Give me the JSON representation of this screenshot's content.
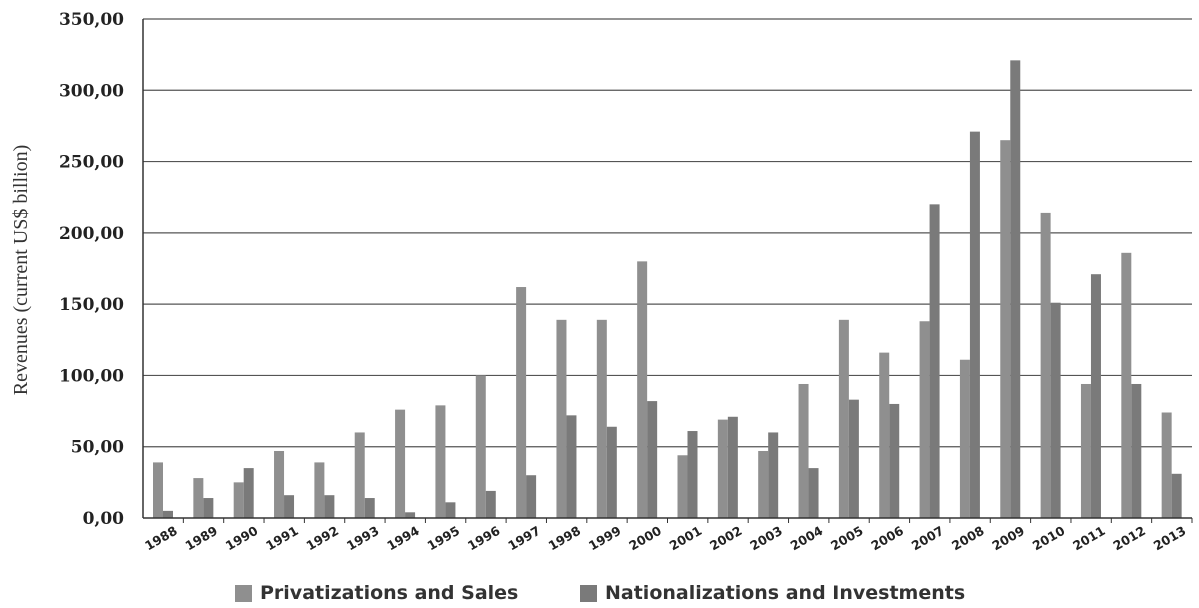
{
  "chart_data": {
    "type": "bar",
    "title": "",
    "xlabel": "",
    "ylabel": "Revenues (current US$ billion)",
    "ylim": [
      0,
      350
    ],
    "yticks": [
      "0,00",
      "50,00",
      "100,00",
      "150,00",
      "200,00",
      "250,00",
      "300,00",
      "350,00"
    ],
    "categories": [
      "1988",
      "1989",
      "1990",
      "1991",
      "1992",
      "1993",
      "1994",
      "1995",
      "1996",
      "1997",
      "1998",
      "1999",
      "2000",
      "2001",
      "2002",
      "2003",
      "2004",
      "2005",
      "2006",
      "2007",
      "2008",
      "2009",
      "2010",
      "2011",
      "2012",
      "2013"
    ],
    "series": [
      {
        "name": "Privatizations and Sales",
        "color": "#8f8f8f",
        "values": [
          39,
          28,
          25,
          47,
          39,
          60,
          76,
          79,
          100,
          162,
          139,
          139,
          180,
          44,
          69,
          47,
          94,
          139,
          116,
          138,
          111,
          265,
          214,
          94,
          186,
          74
        ]
      },
      {
        "name": "Nationalizations and Investments",
        "color": "#7a7a7a",
        "values": [
          5,
          14,
          35,
          16,
          16,
          14,
          4,
          11,
          19,
          30,
          72,
          64,
          82,
          61,
          71,
          60,
          35,
          83,
          80,
          220,
          271,
          321,
          151,
          171,
          94,
          31
        ]
      }
    ],
    "grid": true,
    "legend_position": "bottom"
  }
}
